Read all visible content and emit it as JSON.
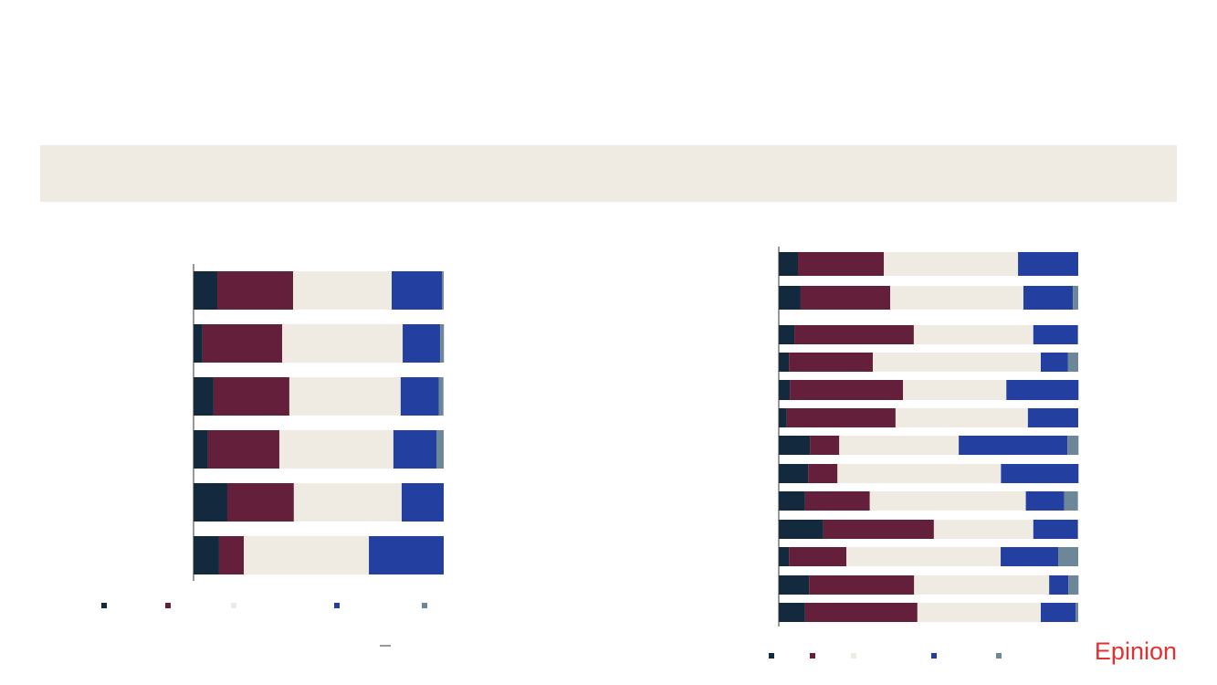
{
  "brand": "Epinion",
  "chart_data": [
    {
      "type": "bar",
      "orientation": "horizontal",
      "stacked": true,
      "categories": [
        null,
        null,
        null,
        null,
        null,
        null
      ],
      "xlim": [
        0,
        100
      ],
      "series": [
        {
          "color": "#132a3e",
          "values": [
            9.5,
            3.6,
            8.0,
            5.8,
            13.5,
            10.2
          ]
        },
        {
          "color": "#641f3a",
          "values": [
            30.3,
            31.8,
            30.3,
            28.5,
            26.6,
            9.9
          ]
        },
        {
          "color": "#efebe3",
          "values": [
            39.4,
            48.2,
            44.5,
            45.6,
            43.1,
            50.0
          ]
        },
        {
          "color": "#233fa0",
          "values": [
            20.1,
            15.0,
            15.3,
            17.2,
            16.8,
            29.9
          ]
        },
        {
          "color": "#6c8797",
          "values": [
            0.7,
            1.5,
            1.8,
            2.9,
            0,
            0
          ]
        }
      ]
    },
    {
      "type": "bar",
      "orientation": "horizontal",
      "stacked": true,
      "categories": [
        null,
        null,
        null,
        null,
        null,
        null,
        null,
        null,
        null,
        null,
        null,
        null,
        null
      ],
      "xlim": [
        0,
        100
      ],
      "series": [
        {
          "color": "#132a3e",
          "values": [
            6.4,
            7.3,
            5.2,
            3.4,
            3.7,
            2.7,
            10.4,
            9.8,
            8.8,
            14.9,
            3.4,
            10.1,
            8.8
          ]
        },
        {
          "color": "#641f3a",
          "values": [
            28.7,
            29.9,
            39.9,
            28.0,
            37.8,
            36.3,
            9.8,
            9.8,
            21.6,
            36.9,
            19.2,
            35.1,
            37.5
          ]
        },
        {
          "color": "#efebe3",
          "values": [
            44.8,
            44.5,
            39.9,
            56.1,
            34.5,
            44.2,
            39.9,
            54.6,
            52.1,
            33.2,
            51.5,
            45.1,
            41.2
          ]
        },
        {
          "color": "#233fa0",
          "values": [
            20.1,
            16.5,
            14.9,
            9.1,
            24.1,
            16.8,
            36.3,
            25.9,
            12.8,
            14.9,
            19.2,
            6.4,
            11.6
          ]
        },
        {
          "color": "#6c8797",
          "values": [
            0,
            1.8,
            0,
            3.4,
            0,
            0,
            3.7,
            0,
            4.6,
            0,
            6.7,
            3.4,
            0.9
          ]
        }
      ]
    }
  ]
}
